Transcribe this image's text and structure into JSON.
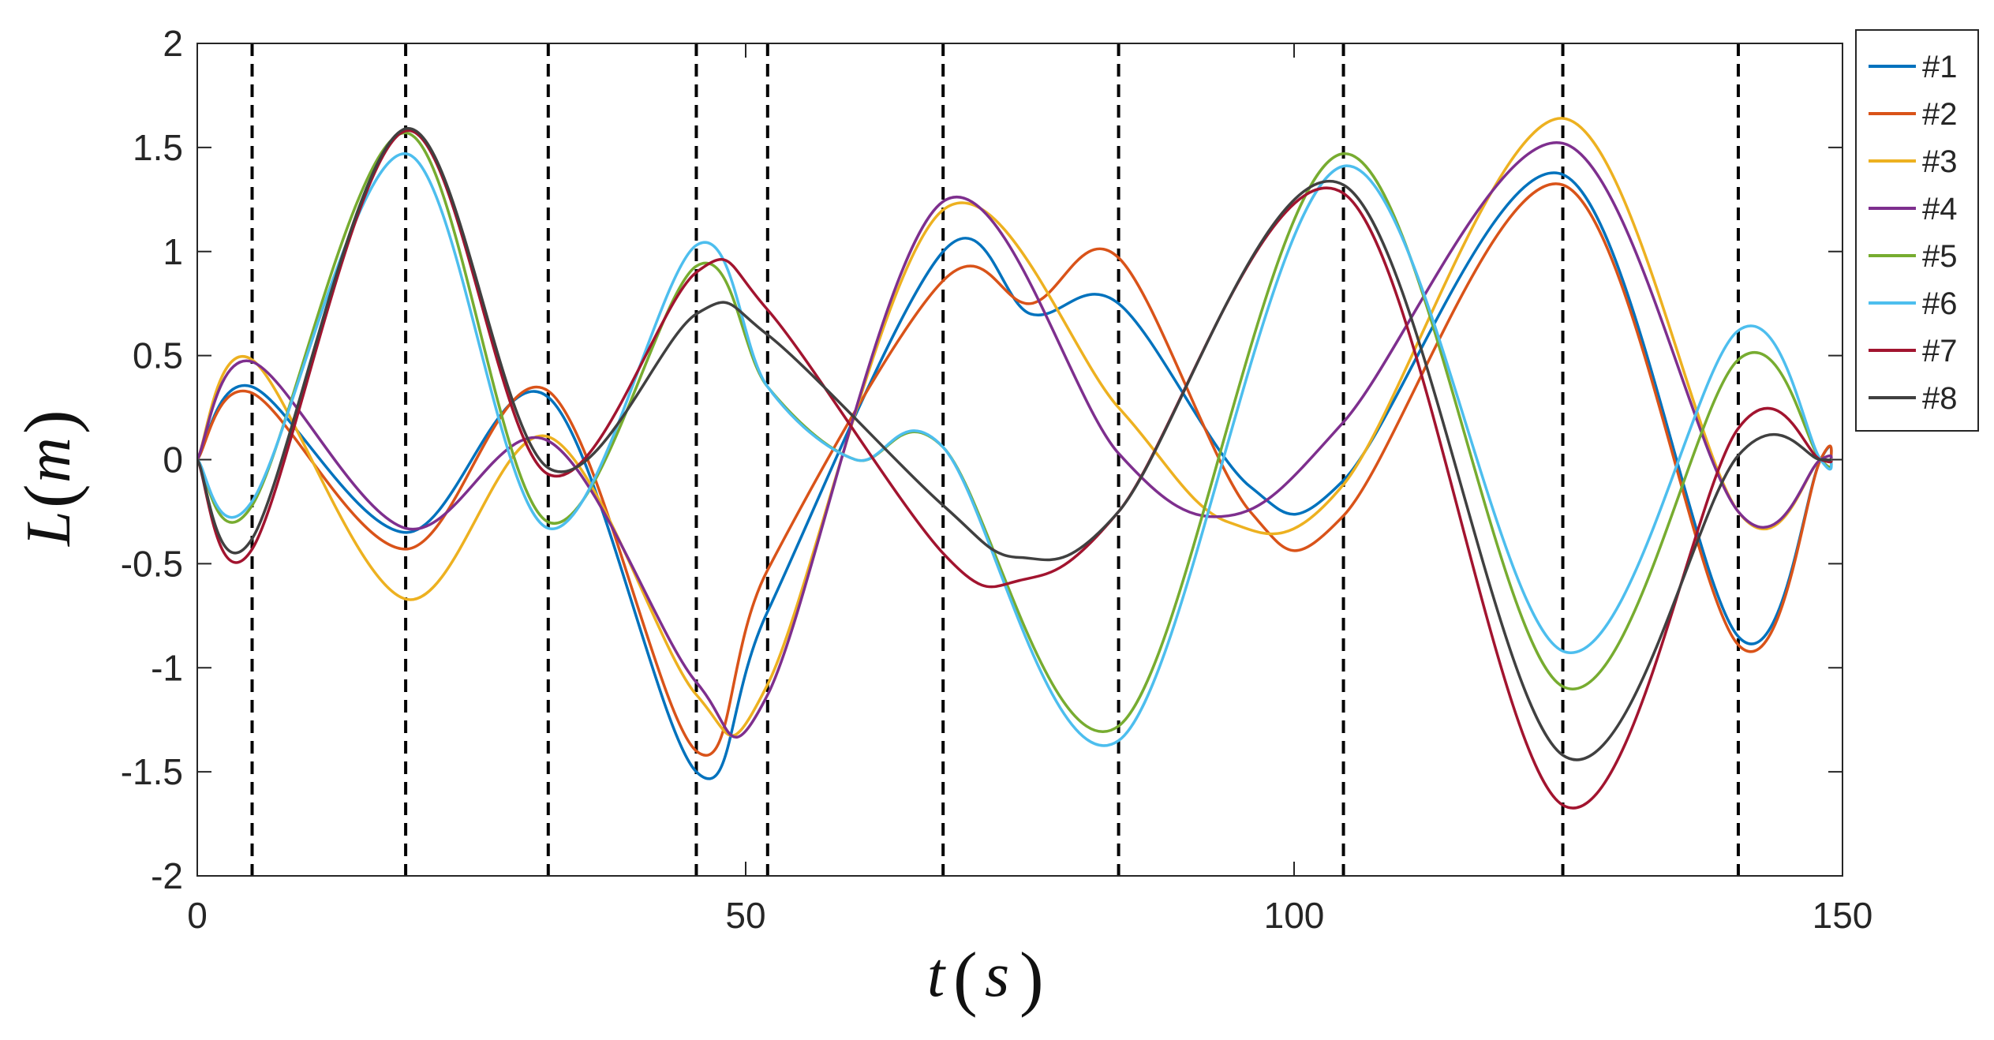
{
  "chart_data": {
    "type": "line",
    "title": "",
    "xlabel": {
      "symbol": "t",
      "unit": "s"
    },
    "ylabel": {
      "symbol": "L",
      "unit": "m"
    },
    "xlim": [
      0,
      150
    ],
    "ylim": [
      -2,
      2
    ],
    "xticks": [
      0,
      50,
      100,
      150
    ],
    "xtick_labels": [
      "0",
      "50",
      "100",
      "150"
    ],
    "yticks": [
      -2,
      -1.5,
      -1,
      -0.5,
      0,
      0.5,
      1,
      1.5,
      2
    ],
    "ytick_labels": [
      "-2",
      "-1.5",
      "-1",
      "-0.5",
      "0",
      "0.5",
      "1",
      "1.5",
      "2"
    ],
    "grid": false,
    "legend_position": "outside-right-top",
    "vlines": [
      5,
      19,
      32,
      45.5,
      52,
      68,
      84,
      104.5,
      124.5,
      140.5
    ],
    "series": [
      {
        "name": "#1",
        "color": "#0072BD",
        "x": [
          0,
          5,
          19,
          32,
          45.5,
          52,
          68,
          76,
          84,
          96,
          104.5,
          124.5,
          140.5,
          148,
          149
        ],
        "y": [
          0,
          0.35,
          -0.35,
          0.3,
          -1.5,
          -0.73,
          1.0,
          0.7,
          0.75,
          -0.13,
          -0.1,
          1.37,
          -0.85,
          0,
          0
        ]
      },
      {
        "name": "#2",
        "color": "#D95319",
        "x": [
          0,
          5,
          19,
          32,
          45.5,
          52,
          68,
          76,
          84,
          96,
          104.5,
          124.5,
          140.5,
          148,
          149
        ],
        "y": [
          0,
          0.32,
          -0.43,
          0.33,
          -1.4,
          -0.53,
          0.86,
          0.75,
          0.97,
          -0.25,
          -0.27,
          1.32,
          -0.89,
          0,
          0
        ]
      },
      {
        "name": "#3",
        "color": "#EDB120",
        "x": [
          0,
          5,
          19,
          32,
          45.5,
          52,
          68,
          84,
          94,
          104.5,
          124.5,
          140.5,
          148,
          149
        ],
        "y": [
          0,
          0.48,
          -0.67,
          0.11,
          -1.13,
          -1.08,
          1.2,
          0.25,
          -0.3,
          -0.12,
          1.64,
          -0.25,
          0,
          0
        ]
      },
      {
        "name": "#4",
        "color": "#7E2F8E",
        "x": [
          0,
          5,
          19,
          32,
          45.5,
          52,
          68,
          84,
          94,
          104.5,
          124.5,
          140.5,
          148,
          149
        ],
        "y": [
          0,
          0.47,
          -0.33,
          0.09,
          -1.07,
          -1.13,
          1.24,
          0.03,
          -0.27,
          0.18,
          1.52,
          -0.25,
          0,
          0
        ]
      },
      {
        "name": "#5",
        "color": "#77AC30",
        "x": [
          0,
          5,
          19,
          32,
          45.5,
          52,
          60,
          68,
          84,
          104.5,
          124.5,
          140.5,
          148,
          149
        ],
        "y": [
          0,
          -0.22,
          1.57,
          -0.3,
          0.93,
          0.35,
          0.0,
          0.06,
          -1.28,
          1.47,
          -1.09,
          0.48,
          0,
          0
        ]
      },
      {
        "name": "#6",
        "color": "#4DBEEE",
        "x": [
          0,
          5,
          19,
          32,
          45.5,
          52,
          60,
          68,
          84,
          104.5,
          124.5,
          140.5,
          148,
          149
        ],
        "y": [
          0,
          -0.2,
          1.47,
          -0.33,
          1.03,
          0.35,
          0.0,
          0.06,
          -1.35,
          1.41,
          -0.92,
          0.62,
          0,
          0
        ]
      },
      {
        "name": "#7",
        "color": "#A2142F",
        "x": [
          0,
          5,
          19,
          32,
          45.5,
          52,
          68,
          75,
          84,
          104.5,
          124.5,
          140.5,
          148,
          149
        ],
        "y": [
          0,
          -0.43,
          1.58,
          -0.07,
          0.9,
          0.72,
          -0.45,
          -0.58,
          -0.25,
          1.28,
          -1.66,
          0.15,
          0,
          0
        ]
      },
      {
        "name": "#8",
        "color": "#404040",
        "x": [
          0,
          5,
          19,
          32,
          45.5,
          52,
          68,
          75,
          84,
          104.5,
          124.5,
          140.5,
          148,
          149
        ],
        "y": [
          0,
          -0.38,
          1.59,
          -0.04,
          0.7,
          0.6,
          -0.22,
          -0.47,
          -0.25,
          1.32,
          -1.42,
          0.02,
          0,
          0
        ]
      }
    ]
  }
}
